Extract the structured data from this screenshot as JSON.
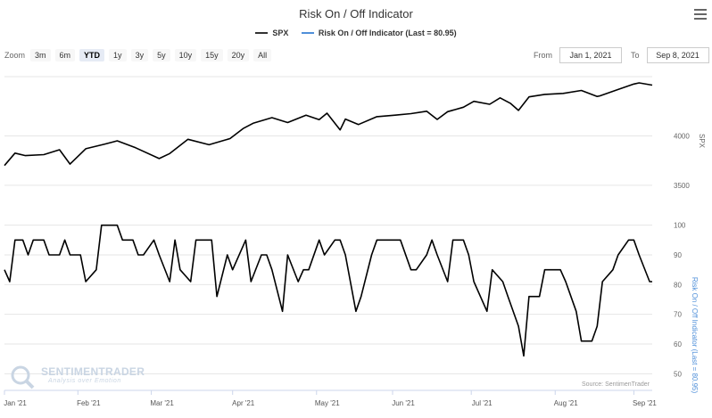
{
  "title": "Risk On / Off Indicator",
  "legend": [
    {
      "name": "SPX",
      "color": "#333333"
    },
    {
      "name": "Risk On / Off Indicator (Last = 80.95)",
      "color": "#4f8fd9"
    }
  ],
  "zoom": {
    "label": "Zoom",
    "buttons": [
      "3m",
      "6m",
      "YTD",
      "1y",
      "3y",
      "5y",
      "10y",
      "15y",
      "20y",
      "All"
    ],
    "active": "YTD"
  },
  "range": {
    "from_label": "From",
    "from_value": "Jan 1, 2021",
    "to_label": "To",
    "to_value": "Sep 8, 2021"
  },
  "watermark": {
    "name": "SENTIMENTRADER",
    "tagline": "Analysis over Emotion"
  },
  "credit": "Source: SentimenTrader",
  "chart_data": [
    {
      "type": "line",
      "series": [
        {
          "name": "SPX"
        }
      ],
      "ylabel": "SPX",
      "yticks": [
        3500,
        4000
      ],
      "ylim": [
        3300,
        4600
      ],
      "x": [
        "2021-01-04",
        "2021-01-08",
        "2021-01-12",
        "2021-01-19",
        "2021-01-25",
        "2021-01-29",
        "2021-02-04",
        "2021-02-11",
        "2021-02-16",
        "2021-02-23",
        "2021-03-04",
        "2021-03-08",
        "2021-03-15",
        "2021-03-23",
        "2021-03-31",
        "2021-04-05",
        "2021-04-09",
        "2021-04-16",
        "2021-04-22",
        "2021-04-29",
        "2021-05-04",
        "2021-05-07",
        "2021-05-12",
        "2021-05-14",
        "2021-05-19",
        "2021-05-26",
        "2021-06-02",
        "2021-06-08",
        "2021-06-14",
        "2021-06-18",
        "2021-06-22",
        "2021-06-28",
        "2021-07-02",
        "2021-07-08",
        "2021-07-12",
        "2021-07-16",
        "2021-07-19",
        "2021-07-23",
        "2021-07-29",
        "2021-08-05",
        "2021-08-12",
        "2021-08-18",
        "2021-08-19",
        "2021-08-26",
        "2021-09-01",
        "2021-09-03",
        "2021-09-08"
      ],
      "values": [
        3700,
        3825,
        3800,
        3810,
        3860,
        3714,
        3870,
        3915,
        3950,
        3880,
        3770,
        3821,
        3965,
        3910,
        3973,
        4075,
        4130,
        4185,
        4135,
        4210,
        4165,
        4230,
        4060,
        4170,
        4115,
        4195,
        4210,
        4225,
        4250,
        4167,
        4245,
        4290,
        4350,
        4320,
        4385,
        4328,
        4258,
        4395,
        4420,
        4430,
        4460,
        4400,
        4405,
        4470,
        4525,
        4537,
        4514
      ],
      "xticks": [
        "Jan '21",
        "Feb '21",
        "Mar '21",
        "Apr '21",
        "May '21",
        "Jun '21",
        "Jul '21",
        "Aug '21",
        "Sep '21"
      ]
    },
    {
      "type": "line",
      "series": [
        {
          "name": "Risk On / Off Indicator (Last = 80.95)"
        }
      ],
      "ylabel": "Risk On / Off Indicator (Last = 80.95)",
      "yticks": [
        50,
        60,
        70,
        80,
        90,
        100
      ],
      "ylim": [
        45,
        105
      ],
      "x": [
        "2021-01-04",
        "2021-01-06",
        "2021-01-08",
        "2021-01-11",
        "2021-01-13",
        "2021-01-15",
        "2021-01-19",
        "2021-01-21",
        "2021-01-25",
        "2021-01-27",
        "2021-01-29",
        "2021-02-02",
        "2021-02-04",
        "2021-02-08",
        "2021-02-10",
        "2021-02-16",
        "2021-02-18",
        "2021-02-22",
        "2021-02-24",
        "2021-02-26",
        "2021-03-02",
        "2021-03-04",
        "2021-03-08",
        "2021-03-10",
        "2021-03-12",
        "2021-03-16",
        "2021-03-18",
        "2021-03-22",
        "2021-03-24",
        "2021-03-26",
        "2021-03-30",
        "2021-04-01",
        "2021-04-06",
        "2021-04-08",
        "2021-04-12",
        "2021-04-14",
        "2021-04-16",
        "2021-04-20",
        "2021-04-22",
        "2021-04-26",
        "2021-04-28",
        "2021-04-30",
        "2021-05-04",
        "2021-05-06",
        "2021-05-10",
        "2021-05-12",
        "2021-05-14",
        "2021-05-18",
        "2021-05-20",
        "2021-05-24",
        "2021-05-26",
        "2021-05-28",
        "2021-06-02",
        "2021-06-04",
        "2021-06-08",
        "2021-06-10",
        "2021-06-14",
        "2021-06-16",
        "2021-06-18",
        "2021-06-22",
        "2021-06-24",
        "2021-06-28",
        "2021-06-30",
        "2021-07-02",
        "2021-07-07",
        "2021-07-09",
        "2021-07-13",
        "2021-07-15",
        "2021-07-19",
        "2021-07-21",
        "2021-07-23",
        "2021-07-27",
        "2021-07-29",
        "2021-08-02",
        "2021-08-04",
        "2021-08-06",
        "2021-08-10",
        "2021-08-12",
        "2021-08-16",
        "2021-08-18",
        "2021-08-20",
        "2021-08-24",
        "2021-08-26",
        "2021-08-30",
        "2021-09-01",
        "2021-09-03",
        "2021-09-07",
        "2021-09-08"
      ],
      "values": [
        85,
        81,
        95,
        95,
        90,
        95,
        95,
        90,
        90,
        95,
        90,
        90,
        81,
        85,
        100,
        100,
        95,
        95,
        90,
        90,
        95,
        90,
        81,
        95,
        85,
        81,
        95,
        95,
        95,
        76,
        90,
        85,
        95,
        81,
        90,
        90,
        85,
        71,
        90,
        81,
        85,
        85,
        95,
        90,
        95,
        95,
        90,
        71,
        76,
        90,
        95,
        95,
        95,
        95,
        85,
        85,
        90,
        95,
        90,
        81,
        95,
        95,
        90,
        81,
        71,
        85,
        81,
        76,
        66,
        56,
        76,
        76,
        85,
        85,
        85,
        81,
        71,
        61,
        61,
        66,
        81,
        85,
        90,
        95,
        95,
        90,
        81,
        81
      ],
      "xticks": [
        "Jan '21",
        "Feb '21",
        "Mar '21",
        "Apr '21",
        "May '21",
        "Jun '21",
        "Jul '21",
        "Aug '21",
        "Sep '21"
      ]
    }
  ]
}
